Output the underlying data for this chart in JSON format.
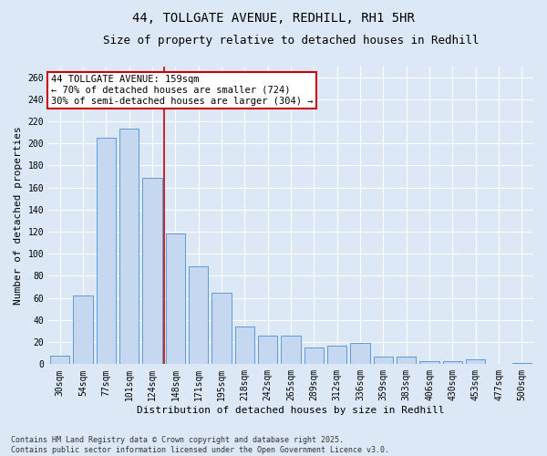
{
  "title1": "44, TOLLGATE AVENUE, REDHILL, RH1 5HR",
  "title2": "Size of property relative to detached houses in Redhill",
  "xlabel": "Distribution of detached houses by size in Redhill",
  "ylabel": "Number of detached properties",
  "categories": [
    "30sqm",
    "54sqm",
    "77sqm",
    "101sqm",
    "124sqm",
    "148sqm",
    "171sqm",
    "195sqm",
    "218sqm",
    "242sqm",
    "265sqm",
    "289sqm",
    "312sqm",
    "336sqm",
    "359sqm",
    "383sqm",
    "406sqm",
    "430sqm",
    "453sqm",
    "477sqm",
    "500sqm"
  ],
  "values": [
    8,
    62,
    205,
    213,
    169,
    118,
    89,
    65,
    34,
    26,
    26,
    15,
    17,
    19,
    7,
    7,
    3,
    3,
    4,
    0,
    1
  ],
  "bar_color": "#c5d8f0",
  "bar_edge_color": "#5b9bd5",
  "background_color": "#dce8f5",
  "grid_color": "#ffffff",
  "vline_color": "#cc0000",
  "vline_x": 4.5,
  "annotation_text": "44 TOLLGATE AVENUE: 159sqm\n← 70% of detached houses are smaller (724)\n30% of semi-detached houses are larger (304) →",
  "annotation_box_color": "#cc0000",
  "ylim": [
    0,
    270
  ],
  "yticks": [
    0,
    20,
    40,
    60,
    80,
    100,
    120,
    140,
    160,
    180,
    200,
    220,
    240,
    260
  ],
  "footnote": "Contains HM Land Registry data © Crown copyright and database right 2025.\nContains public sector information licensed under the Open Government Licence v3.0.",
  "title_fontsize": 10,
  "subtitle_fontsize": 9,
  "axis_label_fontsize": 8,
  "tick_fontsize": 7,
  "annotation_fontsize": 7.5
}
